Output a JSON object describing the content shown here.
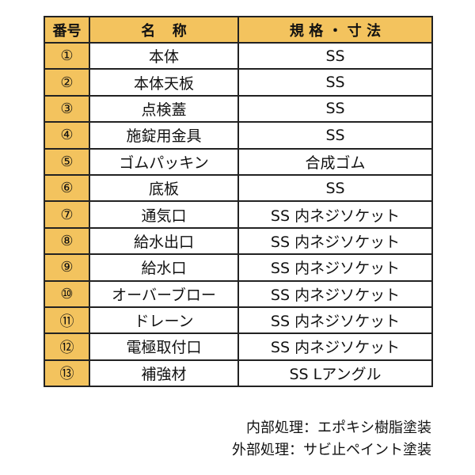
{
  "table": {
    "header": [
      "番号",
      "名称",
      "規格・寸法"
    ],
    "rows": [
      [
        "①",
        "本体",
        "SS"
      ],
      [
        "②",
        "本体天板",
        "SS"
      ],
      [
        "③",
        "点検蓋",
        "SS"
      ],
      [
        "④",
        "施錠用金具",
        "SS"
      ],
      [
        "⑤",
        "ゴムパッキン",
        "合成ゴム"
      ],
      [
        "⑥",
        "底板",
        "SS"
      ],
      [
        "⑦",
        "通気口",
        "SS 内ネジソケット"
      ],
      [
        "⑧",
        "給水出口",
        "SS 内ネジソケット"
      ],
      [
        "⑨",
        "給水口",
        "SS 内ネジソケット"
      ],
      [
        "⑩",
        "オーバーブロー",
        "SS 内ネジソケット"
      ],
      [
        "⑪",
        "ドレーン",
        "SS 内ネジソケット"
      ],
      [
        "⑫",
        "電極取付口",
        "SS 内ネジソケット"
      ],
      [
        "⑬",
        "補強材",
        "SS Lアングル"
      ]
    ]
  },
  "notes": [
    "内部処理：エポキシ樹脂塗装",
    "外部処理：サビ止ペイント塗装"
  ]
}
